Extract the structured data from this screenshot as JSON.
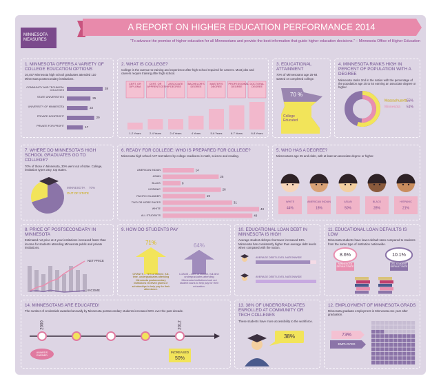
{
  "header": {
    "badge": "MINNESOTA MEASURES",
    "title": "A REPORT ON HIGHER EDUCATION PERFORMANCE 2014",
    "quote": "\"To advance the promise of higher education for all Minnesotans and provide the best information that guide higher education decisions.\" – Minnesota Office of Higher Education"
  },
  "panels": {
    "options": {
      "title": "1. MINNESOTA OFFERS A VARIETY OF COLLEGE EDUCATION OPTIONS",
      "text": "16,457 Minnesota high school graduates attended 110 Minnesota postsecondary institutions.",
      "categories": [
        "COMMUNITY AND TECHNICAL COLLEGES",
        "STATE UNIVERSITIES",
        "UNIVERSITY OF MINNESOTA",
        "PRIVATE NONPROFIT",
        "PRIVATE FOR-PROFIT"
      ],
      "values": [
        38,
        25,
        22,
        29,
        17
      ]
    },
    "college": {
      "title": "2. WHAT IS COLLEGE?",
      "text": "College is the avenue to training and experience after high school required for careers. Most jobs and careers require training after high school.",
      "awards": [
        "CERT. OR DIPLOMA",
        "CERT. OR APPRENTICESHIP",
        "ASSOCIATE DEGREE",
        "BACHELOR'S DEGREE",
        "MASTER'S DEGREE",
        "PROFESSIONAL DEGREE",
        "DOCTORAL DEGREE"
      ],
      "categories": [
        "1-2 Years",
        "2-4 Years",
        "2-4 Years",
        "4 Years",
        "5-6 Years",
        "6-7 Years",
        "6-8 Years"
      ],
      "values": [
        2,
        3,
        3,
        4,
        6,
        7,
        8
      ]
    },
    "attainment": {
      "title": "3. EDUCATIONAL ATTAINMENT",
      "text": "70% of Minnesotans age 25-64 started or completed college.",
      "value": 70,
      "value_label": "70 %",
      "label": "College Educated"
    },
    "rank": {
      "title": "4. MINNESOTA RANKS HIGH IN PERCENT OF POPULATION WITH A DEGREE",
      "text": "Minnesota ranks 2nd in the nation with the percentage of the population age 25 to 64 earning an associate degree or higher.",
      "series": [
        {
          "name": "Massachusetts",
          "value": 55,
          "value_label": "55%",
          "color": "#f2e45a"
        },
        {
          "name": "Minnesota",
          "value": 51,
          "value_label": "51%",
          "color": "#e98fb0"
        }
      ]
    },
    "destination": {
      "title": "7. WHERE DO MINNESOTA'S HIGH SCHOOL GRADUATES GO TO COLLEGE?",
      "text": "70% of those in Minnesota, 30% went out of state. College, institution types vary, top states.",
      "slices": [
        {
          "name": "MINNESOTA",
          "value": 70,
          "value_label": "70%",
          "color": "#8b74a8"
        },
        {
          "name": "OUT OF STATE",
          "value": 30,
          "color": "#f2e45a"
        }
      ]
    },
    "ready": {
      "title": "6. READY FOR COLLEGE: WHO IS PREPARED FOR COLLEGE?",
      "text": "Minnesota high school ACT test takers by college readiness in math, science and reading.",
      "categories": [
        "AMERICAN INDIAN",
        "ASIAN",
        "BLACK",
        "HISPANIC",
        "PACIFIC ISLANDER",
        "TWO OR MORE RACES",
        "WHITE",
        "ALL STUDENTS"
      ],
      "values": [
        14,
        25,
        8,
        26,
        19,
        31,
        43,
        40
      ]
    },
    "degree": {
      "title": "5. WHO HAS A DEGREE?",
      "text": "Minnesotans age 25 and older, with at least an associate degree or higher.",
      "groups": [
        {
          "name": "WHITE",
          "value": 44,
          "value_label": "44%"
        },
        {
          "name": "AMERICAN INDIAN",
          "value": 18,
          "value_label": "18%"
        },
        {
          "name": "ASIAN",
          "value": 50,
          "value_label": "50%"
        },
        {
          "name": "BLACK",
          "value": 28,
          "value_label": "28%"
        },
        {
          "name": "HISPANIC",
          "value": 21,
          "value_label": "21%"
        }
      ]
    },
    "price": {
      "title": "8. PRICE OF POSTSECONDARY IN MINNESOTA",
      "text": "Estimated net price at 4-year institutions increased faster than income for students attending Minnesota public and private institutions.",
      "series": [
        {
          "name": "NET PRICE",
          "color": "#e98fb0",
          "values": [
            100,
            108,
            112,
            121,
            126,
            138,
            147,
            156,
            165
          ]
        },
        {
          "name": "INCOME",
          "color": "#8b74a8",
          "values": [
            100,
            101,
            99,
            102,
            100,
            98,
            99,
            100,
            101
          ]
        }
      ]
    },
    "pay": {
      "title": "9. HOW DO STUDENTS PAY",
      "items": [
        {
          "value": 71,
          "value_label": "71%",
          "text": "GRANTS – 71% of lifetime, full-time, undergraduates attending Minnesota postsecondary institutions received grants or scholarships to help pay for their attendance.",
          "color": "#f2e45a"
        },
        {
          "value": 64,
          "value_label": "64%",
          "text": "LOANS – 64% of lifetime, full-time undergraduates attending Minnesota institutions took out student loans to help pay for their education.",
          "color": "#a08cbc"
        }
      ]
    },
    "debt": {
      "title": "10. EDUCATIONAL LOAN DEBT IN MINNESOTA IS HIGH",
      "text": "Average student debt per borrower increased 13%. Minnesota has consistently higher than average debt levels when compared with the nation.",
      "bars": [
        {
          "label": "AVERAGE DEBT LEVEL NATIONWIDE",
          "value": 27
        },
        {
          "label": "AVERAGE DEBT LEVEL NATIONWIDE",
          "value": 30
        }
      ]
    },
    "defaults": {
      "title": "11. EDUCATIONAL LOAN DEFAULTS IS LOW",
      "text": "Minnesota students have lower default rates compared to students from the same type of institution nationwide.",
      "items": [
        {
          "value": 8.6,
          "value_label": "8.6%",
          "label": "MINNESOTA DEFAULT RATE"
        },
        {
          "value": 10.1,
          "value_label": "10.1%",
          "label": "U.S. STUDENT DEFAULT RATE"
        }
      ]
    },
    "educated": {
      "title": "14. MINNESOTANS ARE EDUCATED!",
      "text": "The number of credentials awarded annually by Minnesota postsecondary students increased 50% over the past decade.",
      "years": [
        "2000",
        "2012"
      ],
      "start_label": "AWARDS EARNED",
      "end_label": "INCREASED",
      "value": 50,
      "value_label": "50%"
    },
    "enrolled": {
      "title": "13. 38% OF UNDERGRADUATES ENROLLED AT COMMUNITY OR TECH COLLEGES",
      "text": "These students have more accessibility to the workforce.",
      "value": 38,
      "value_label": "38%"
    },
    "employment": {
      "title": "12. EMPLOYMENT OF MINNESOTA GRADS",
      "text": "Minnesota graduate employment in Minnesota one year after graduation.",
      "value": 73,
      "value_label": "73%",
      "label": "EMPLOYED"
    }
  }
}
